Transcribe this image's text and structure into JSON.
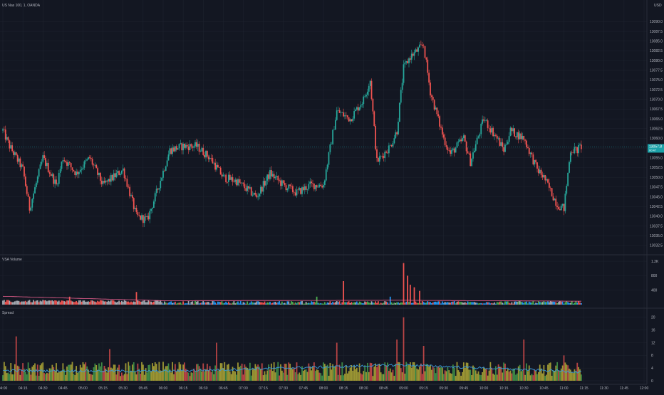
{
  "header": {
    "symbol_title": "US Nas 100, 1, OANDA",
    "currency": "USD"
  },
  "colors": {
    "bg": "#131722",
    "grid": "#1f2430",
    "up": "#26a69a",
    "down": "#ef5350",
    "neutral": "#a5a8b0",
    "blue": "#2196f3",
    "green": "#4caf50",
    "yellow": "#c9c03a",
    "avg_line": "#f06292",
    "spread_line": "#3a9bdc",
    "price_badge": "#1ba1a8"
  },
  "price_axis": {
    "ticks": [
      "13090.0",
      "13087.5",
      "13085.0",
      "13082.5",
      "13080.0",
      "13077.5",
      "13075.0",
      "13072.5",
      "13070.0",
      "13067.5",
      "13065.0",
      "13062.5",
      "13060.0",
      "13057.5",
      "13055.0",
      "13052.5",
      "13050.0",
      "13047.5",
      "13045.0",
      "13042.5",
      "13040.0",
      "13037.5",
      "13035.0",
      "13032.5"
    ],
    "current_price": "13057.8",
    "current_price_sub": "00:47"
  },
  "time_axis": {
    "ticks": [
      "04:00",
      "04:15",
      "04:30",
      "04:45",
      "05:00",
      "05:15",
      "05:30",
      "05:45",
      "06:00",
      "06:15",
      "06:30",
      "06:45",
      "07:00",
      "07:15",
      "07:30",
      "07:45",
      "08:00",
      "08:15",
      "08:30",
      "08:45",
      "09:00",
      "09:15",
      "09:30",
      "09:45",
      "10:00",
      "10:15",
      "10:30",
      "10:45",
      "11:00",
      "11:15",
      "11:30",
      "11:45",
      "12:00"
    ]
  },
  "volume_pane": {
    "title": "VSA Volume",
    "ticks": [
      "1.2K",
      "800",
      "400"
    ]
  },
  "spread_pane": {
    "title": "Spread",
    "ticks": [
      "20",
      "16",
      "12",
      "8",
      "4",
      "0"
    ]
  },
  "chart_data": [
    {
      "type": "candlestick",
      "title": "US Nas 100, 1, OANDA",
      "ylim": [
        13031,
        13093
      ],
      "time_range": [
        "04:00",
        "12:00"
      ],
      "keypoints": [
        {
          "t": "04:00",
          "price": 13062
        },
        {
          "t": "04:05",
          "price": 13058
        },
        {
          "t": "04:15",
          "price": 13052
        },
        {
          "t": "04:20",
          "price": 13042
        },
        {
          "t": "04:30",
          "price": 13055
        },
        {
          "t": "04:40",
          "price": 13048
        },
        {
          "t": "04:45",
          "price": 13055
        },
        {
          "t": "04:55",
          "price": 13051
        },
        {
          "t": "05:05",
          "price": 13055
        },
        {
          "t": "05:15",
          "price": 13048
        },
        {
          "t": "05:30",
          "price": 13052
        },
        {
          "t": "05:40",
          "price": 13040
        },
        {
          "t": "05:48",
          "price": 13039
        },
        {
          "t": "05:55",
          "price": 13046
        },
        {
          "t": "06:05",
          "price": 13057
        },
        {
          "t": "06:15",
          "price": 13058
        },
        {
          "t": "06:25",
          "price": 13058
        },
        {
          "t": "06:35",
          "price": 13055
        },
        {
          "t": "06:45",
          "price": 13050
        },
        {
          "t": "06:55",
          "price": 13049
        },
        {
          "t": "07:10",
          "price": 13045
        },
        {
          "t": "07:20",
          "price": 13051
        },
        {
          "t": "07:30",
          "price": 13048
        },
        {
          "t": "07:40",
          "price": 13046
        },
        {
          "t": "07:50",
          "price": 13048
        },
        {
          "t": "08:00",
          "price": 13048
        },
        {
          "t": "08:10",
          "price": 13067
        },
        {
          "t": "08:20",
          "price": 13065
        },
        {
          "t": "08:30",
          "price": 13070
        },
        {
          "t": "08:35",
          "price": 13075
        },
        {
          "t": "08:40",
          "price": 13054
        },
        {
          "t": "08:50",
          "price": 13058
        },
        {
          "t": "08:55",
          "price": 13062
        },
        {
          "t": "09:00",
          "price": 13078
        },
        {
          "t": "09:05",
          "price": 13081
        },
        {
          "t": "09:15",
          "price": 13084
        },
        {
          "t": "09:20",
          "price": 13072
        },
        {
          "t": "09:30",
          "price": 13060
        },
        {
          "t": "09:35",
          "price": 13056
        },
        {
          "t": "09:45",
          "price": 13060
        },
        {
          "t": "09:50",
          "price": 13054
        },
        {
          "t": "10:00",
          "price": 13065
        },
        {
          "t": "10:10",
          "price": 13060
        },
        {
          "t": "10:15",
          "price": 13057
        },
        {
          "t": "10:20",
          "price": 13062
        },
        {
          "t": "10:30",
          "price": 13060
        },
        {
          "t": "10:40",
          "price": 13052
        },
        {
          "t": "10:45",
          "price": 13050
        },
        {
          "t": "10:55",
          "price": 13043
        },
        {
          "t": "11:00",
          "price": 13042
        },
        {
          "t": "11:05",
          "price": 13057
        },
        {
          "t": "11:10",
          "price": 13057
        },
        {
          "t": "11:13",
          "price": 13058
        }
      ]
    },
    {
      "type": "bar",
      "title": "VSA Volume",
      "ylim": [
        0,
        1300
      ],
      "spikes": [
        {
          "t": "04:50",
          "value": 220
        },
        {
          "t": "05:40",
          "value": 350
        },
        {
          "t": "07:55",
          "value": 220
        },
        {
          "t": "08:15",
          "value": 650
        },
        {
          "t": "08:50",
          "value": 220
        },
        {
          "t": "09:00",
          "value": 1150
        },
        {
          "t": "09:03",
          "value": 800
        },
        {
          "t": "09:05",
          "value": 550
        },
        {
          "t": "09:08",
          "value": 480
        },
        {
          "t": "09:12",
          "value": 380
        }
      ],
      "average_line": [
        {
          "t": "04:00",
          "value": 230
        },
        {
          "t": "06:00",
          "value": 110
        },
        {
          "t": "09:00",
          "value": 120
        },
        {
          "t": "11:13",
          "value": 95
        }
      ]
    },
    {
      "type": "bar",
      "title": "Spread",
      "ylim": [
        0,
        22
      ],
      "spikes": [
        {
          "t": "04:10",
          "value": 14
        },
        {
          "t": "05:20",
          "value": 10
        },
        {
          "t": "06:40",
          "value": 12
        },
        {
          "t": "08:10",
          "value": 12
        },
        {
          "t": "08:55",
          "value": 13
        },
        {
          "t": "09:00",
          "value": 20
        },
        {
          "t": "09:15",
          "value": 11
        },
        {
          "t": "10:30",
          "value": 13
        },
        {
          "t": "11:00",
          "value": 8
        }
      ],
      "average_line": [
        {
          "t": "04:00",
          "value": 3.2
        },
        {
          "t": "06:00",
          "value": 3.0
        },
        {
          "t": "09:00",
          "value": 5.0
        },
        {
          "t": "11:13",
          "value": 2.8
        }
      ]
    }
  ]
}
